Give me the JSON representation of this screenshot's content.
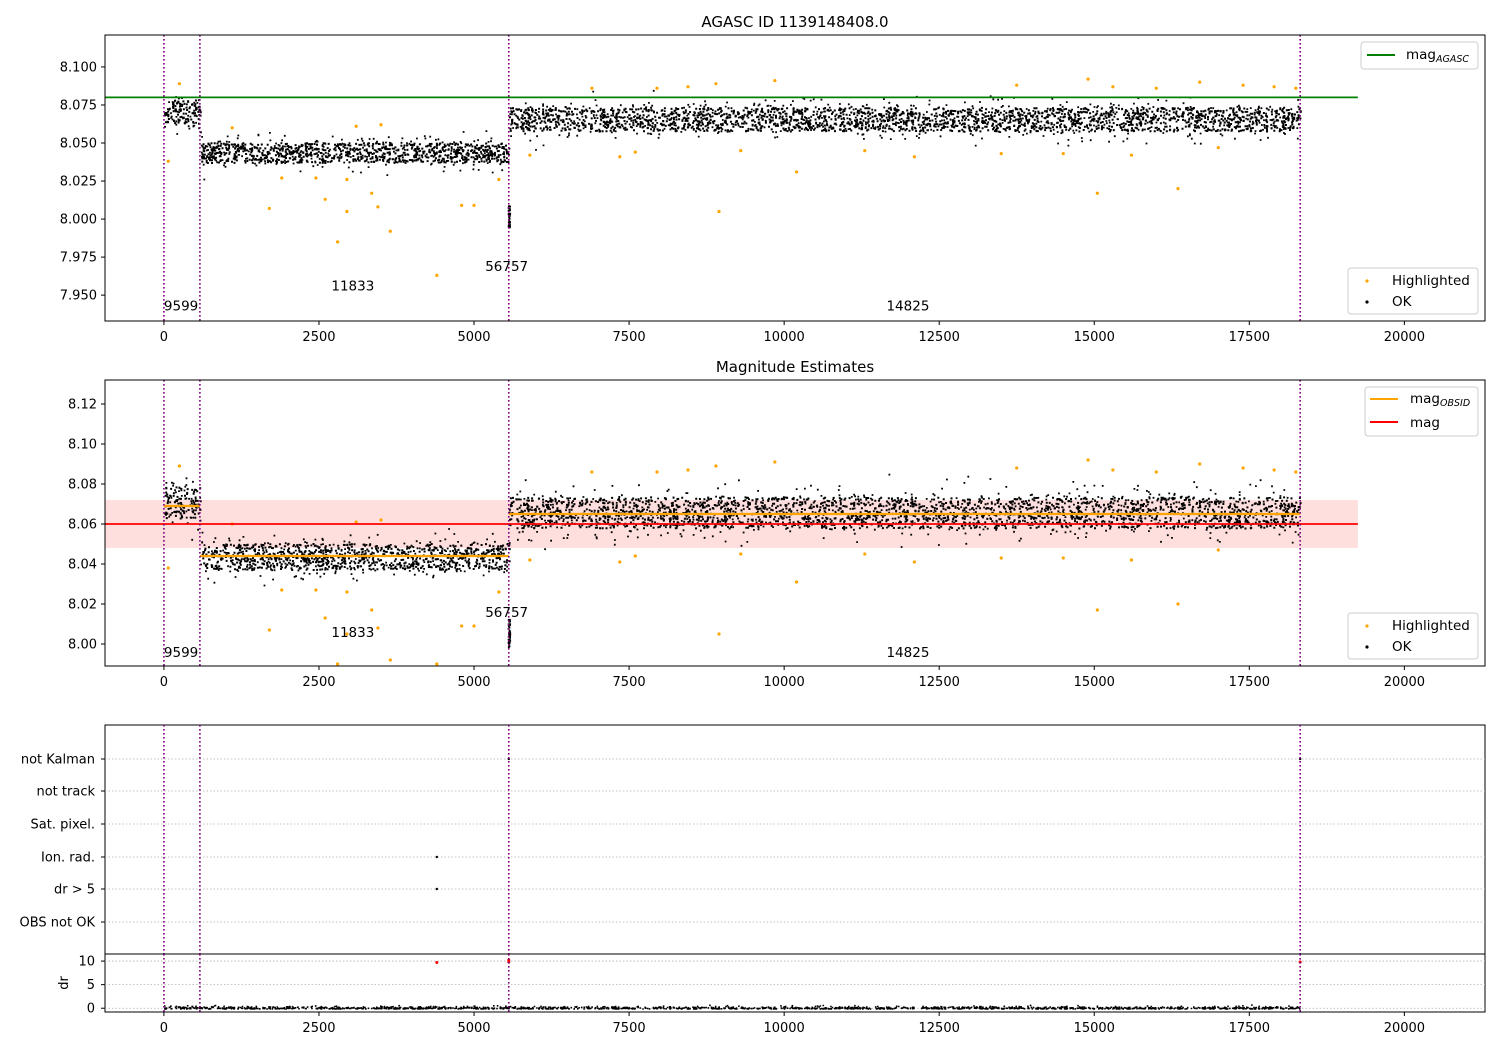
{
  "chart_data": [
    {
      "type": "scatter",
      "title": "AGASC ID 1139148408.0",
      "xlim": [
        -950,
        21300
      ],
      "ylim": [
        7.933,
        8.121
      ],
      "xticks": [
        "0",
        "2500",
        "5000",
        "7500",
        "10000",
        "12500",
        "15000",
        "17500",
        "20000"
      ],
      "yticks": [
        "7.950",
        "7.975",
        "8.000",
        "8.025",
        "8.050",
        "8.075",
        "8.100"
      ],
      "reference_line": {
        "name": "mag",
        "subscript": "AGASC",
        "y": 8.08,
        "x_range": [
          -950,
          19250
        ],
        "color": "#008000"
      },
      "legend_top": "upper right",
      "legend_bottom": "lower right",
      "series": [
        {
          "name": "Highlighted",
          "color": "#ffa500"
        },
        {
          "name": "OK",
          "color": "#000000"
        }
      ],
      "obs_boundaries": [
        0,
        580,
        5560,
        18320
      ],
      "obs_labels": [
        {
          "text": "9599",
          "x": 0,
          "y": 7.94
        },
        {
          "text": "11833",
          "x": 2700,
          "y": 7.953
        },
        {
          "text": "56757",
          "x": 5180,
          "y": 7.966
        },
        {
          "text": "14825",
          "x": 11650,
          "y": 7.94
        }
      ],
      "segments": [
        {
          "x_range": [
            0,
            580
          ],
          "center": 8.071,
          "spread": 0.006
        },
        {
          "x_range": [
            580,
            5560
          ],
          "center": 8.044,
          "spread": 0.005
        },
        {
          "x_range": [
            5560,
            18320
          ],
          "center": 8.066,
          "spread": 0.006
        }
      ],
      "highlighted": [
        [
          70,
          8.038
        ],
        [
          250,
          8.089
        ],
        [
          1100,
          8.06
        ],
        [
          1700,
          8.007
        ],
        [
          1900,
          8.027
        ],
        [
          2450,
          8.027
        ],
        [
          2600,
          8.013
        ],
        [
          2800,
          7.985
        ],
        [
          2950,
          8.026
        ],
        [
          2950,
          8.005
        ],
        [
          3100,
          8.061
        ],
        [
          3350,
          8.017
        ],
        [
          3450,
          8.008
        ],
        [
          3500,
          8.062
        ],
        [
          3650,
          7.992
        ],
        [
          4400,
          7.963
        ],
        [
          4800,
          8.009
        ],
        [
          5000,
          8.009
        ],
        [
          5400,
          8.026
        ],
        [
          5900,
          8.042
        ],
        [
          6900,
          8.086
        ],
        [
          7350,
          8.041
        ],
        [
          7600,
          8.044
        ],
        [
          7950,
          8.086
        ],
        [
          8450,
          8.087
        ],
        [
          8900,
          8.089
        ],
        [
          8950,
          8.005
        ],
        [
          9300,
          8.045
        ],
        [
          9850,
          8.091
        ],
        [
          10200,
          8.031
        ],
        [
          11300,
          8.045
        ],
        [
          12100,
          8.041
        ],
        [
          13500,
          8.043
        ],
        [
          13750,
          8.088
        ],
        [
          14500,
          8.043
        ],
        [
          14900,
          8.092
        ],
        [
          15050,
          8.017
        ],
        [
          15300,
          8.087
        ],
        [
          15600,
          8.042
        ],
        [
          16000,
          8.086
        ],
        [
          16350,
          8.02
        ],
        [
          16700,
          8.09
        ],
        [
          17000,
          8.047
        ],
        [
          17400,
          8.088
        ],
        [
          17900,
          8.087
        ],
        [
          18250,
          8.086
        ]
      ]
    },
    {
      "type": "scatter",
      "title": "Magnitude Estimates",
      "xlim": [
        -950,
        21300
      ],
      "ylim": [
        7.989,
        8.132
      ],
      "xticks": [
        "0",
        "2500",
        "5000",
        "7500",
        "10000",
        "12500",
        "15000",
        "17500",
        "20000"
      ],
      "yticks": [
        "8.00",
        "8.02",
        "8.04",
        "8.06",
        "8.08",
        "8.10",
        "8.12"
      ],
      "mag_line": {
        "name": "mag",
        "y": 8.06,
        "band": [
          8.048,
          8.072
        ],
        "x_range": [
          -950,
          19250
        ],
        "color": "#ff0000"
      },
      "mag_obsid": {
        "name": "mag",
        "subscript": "OBSID",
        "color": "#ffa500",
        "levels": [
          {
            "x_range": [
              0,
              580
            ],
            "y": 8.069
          },
          {
            "x_range": [
              580,
              5560
            ],
            "y": 8.044
          },
          {
            "x_range": [
              5560,
              18320
            ],
            "y": 8.065
          }
        ]
      },
      "legend_top": "upper right",
      "legend_bottom": "lower right",
      "series": [
        {
          "name": "Highlighted",
          "color": "#ffa500"
        },
        {
          "name": "OK",
          "color": "#000000"
        }
      ],
      "obs_boundaries": [
        0,
        580,
        5560,
        18320
      ],
      "obs_labels": [
        {
          "text": "9599",
          "x": 0,
          "y": 7.9935
        },
        {
          "text": "11833",
          "x": 2700,
          "y": 8.0035
        },
        {
          "text": "56757",
          "x": 5180,
          "y": 8.0135
        },
        {
          "text": "14825",
          "x": 11650,
          "y": 7.9935
        }
      ],
      "segments": [
        {
          "x_range": [
            0,
            580
          ],
          "center": 8.071,
          "spread": 0.006
        },
        {
          "x_range": [
            580,
            5560
          ],
          "center": 8.044,
          "spread": 0.005
        },
        {
          "x_range": [
            5560,
            18320
          ],
          "center": 8.066,
          "spread": 0.006
        }
      ],
      "highlighted": [
        [
          70,
          8.038
        ],
        [
          250,
          8.089
        ],
        [
          1100,
          8.06
        ],
        [
          1700,
          8.007
        ],
        [
          1900,
          8.027
        ],
        [
          2450,
          8.027
        ],
        [
          2600,
          8.013
        ],
        [
          2800,
          7.99
        ],
        [
          2950,
          8.026
        ],
        [
          2950,
          8.005
        ],
        [
          3100,
          8.061
        ],
        [
          3350,
          8.017
        ],
        [
          3450,
          8.008
        ],
        [
          3500,
          8.062
        ],
        [
          3650,
          7.992
        ],
        [
          4400,
          7.99
        ],
        [
          4800,
          8.009
        ],
        [
          5000,
          8.009
        ],
        [
          5400,
          8.026
        ],
        [
          5900,
          8.042
        ],
        [
          6900,
          8.086
        ],
        [
          7350,
          8.041
        ],
        [
          7600,
          8.044
        ],
        [
          7950,
          8.086
        ],
        [
          8450,
          8.087
        ],
        [
          8900,
          8.089
        ],
        [
          8950,
          8.005
        ],
        [
          9300,
          8.045
        ],
        [
          9850,
          8.091
        ],
        [
          10200,
          8.031
        ],
        [
          11300,
          8.045
        ],
        [
          12100,
          8.041
        ],
        [
          13500,
          8.043
        ],
        [
          13750,
          8.088
        ],
        [
          14500,
          8.043
        ],
        [
          14900,
          8.092
        ],
        [
          15050,
          8.017
        ],
        [
          15300,
          8.087
        ],
        [
          15600,
          8.042
        ],
        [
          16000,
          8.086
        ],
        [
          16350,
          8.02
        ],
        [
          16700,
          8.09
        ],
        [
          17000,
          8.047
        ],
        [
          17400,
          8.088
        ],
        [
          17900,
          8.087
        ],
        [
          18250,
          8.086
        ]
      ]
    },
    {
      "type": "scatter",
      "title": "",
      "xlim": [
        -950,
        21300
      ],
      "categories": [
        "not Kalman",
        "not track",
        "Sat. pixel.",
        "Ion. rad.",
        "dr > 5",
        "OBS not OK"
      ],
      "flagged_points": [
        {
          "category": "Ion. rad.",
          "x": 4400
        },
        {
          "category": "dr > 5",
          "x": 4400
        },
        {
          "category": "not Kalman",
          "x": 5560
        },
        {
          "category": "not Kalman",
          "x": 18320
        }
      ],
      "obs_boundaries": [
        0,
        580,
        5560,
        18320
      ]
    },
    {
      "type": "scatter",
      "title": "",
      "xlim": [
        -950,
        21300
      ],
      "ylim": [
        -0.8,
        11.5
      ],
      "ylabel": "dr",
      "yticks": [
        "0",
        "5",
        "10"
      ],
      "xticks": [
        "0",
        "2500",
        "5000",
        "7500",
        "10000",
        "12500",
        "15000",
        "17500",
        "20000"
      ],
      "outliers": [
        [
          4400,
          9.7
        ],
        [
          5560,
          9.8
        ],
        [
          5560,
          10.2
        ],
        [
          18320,
          9.8
        ]
      ],
      "obs_boundaries": [
        0,
        580,
        5560,
        18320
      ]
    }
  ]
}
